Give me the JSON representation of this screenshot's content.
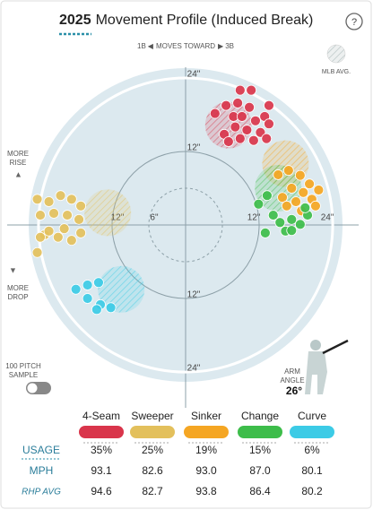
{
  "header": {
    "year": "2025",
    "title": "Movement Profile (Induced Break)",
    "help": "?"
  },
  "chart_data": {
    "type": "scatter",
    "left_label": "1B",
    "direction_label": "MOVES TOWARD",
    "right_label": "3B",
    "rise_label": "MORE RISE",
    "drop_label": "MORE DROP",
    "avg_legend": "MLB AVG.",
    "xlim": [
      -25.6,
      25.6
    ],
    "ylim": [
      -25.6,
      25.6
    ],
    "rticks": [
      {
        "value": 6,
        "label": "6\""
      },
      {
        "value": 12,
        "label": "12\""
      },
      {
        "value": 24,
        "label": "24\""
      }
    ],
    "series": [
      {
        "name": "4-Seam",
        "color": "#d9354b",
        "x": [
          4.8,
          6.6,
          8.9,
          10.7,
          7.8,
          9.2,
          11.4,
          12.9,
          13.6,
          12.2,
          10.0,
          8.1,
          6.3,
          7.0,
          8.9,
          11.1,
          13.2,
          13.6,
          8.5,
          10.4
        ],
        "y": [
          18.2,
          19.5,
          22.0,
          22.0,
          17.7,
          17.7,
          17.0,
          17.7,
          16.5,
          15.1,
          15.5,
          16.0,
          14.8,
          13.6,
          14.1,
          13.8,
          14.1,
          19.5,
          19.9,
          19.2
        ],
        "avg_x": 7.0,
        "avg_y": 16.3
      },
      {
        "name": "Sweeper",
        "color": "#e3c05c",
        "x": [
          -24.2,
          -22.3,
          -20.4,
          -18.6,
          -17.1,
          -23.7,
          -21.5,
          -19.3,
          -17.4,
          -23.0,
          -20.8,
          -18.6,
          -24.2,
          -22.3,
          -19.8,
          -17.1,
          -23.7
        ],
        "y": [
          4.2,
          3.8,
          4.8,
          4.2,
          3.1,
          1.6,
          1.9,
          1.6,
          0.9,
          -1.6,
          -2.0,
          -2.5,
          -4.5,
          -1.0,
          -0.6,
          -1.3,
          -2.0
        ],
        "avg_x": -12.7,
        "avg_y": 2.0
      },
      {
        "name": "Sinker",
        "color": "#f5a623",
        "x": [
          15.1,
          16.8,
          18.7,
          20.2,
          21.7,
          19.2,
          17.3,
          15.8,
          18.0,
          20.6,
          16.5,
          18.9,
          21.2
        ],
        "y": [
          8.2,
          8.9,
          8.1,
          6.7,
          5.7,
          5.3,
          6.0,
          4.5,
          3.8,
          4.2,
          3.1,
          2.3,
          3.1
        ],
        "avg_x": 16.3,
        "avg_y": 10.0
      },
      {
        "name": "Change",
        "color": "#3dbd4a",
        "x": [
          11.9,
          13.3,
          14.3,
          15.4,
          17.3,
          18.7,
          16.3,
          13.0,
          17.3,
          19.9,
          19.5
        ],
        "y": [
          3.4,
          4.8,
          1.6,
          0.4,
          0.9,
          0.1,
          -1.0,
          -1.3,
          -0.9,
          1.6,
          2.8
        ],
        "avg_x": 15.1,
        "avg_y": 6.0
      },
      {
        "name": "Curve",
        "color": "#3ccbe6",
        "x": [
          -17.9,
          -16.0,
          -14.2,
          -16.0,
          -13.9,
          -12.2,
          -14.5
        ],
        "y": [
          -10.5,
          -9.8,
          -9.4,
          -12.0,
          -13.0,
          -13.5,
          -13.8
        ],
        "avg_x": -10.5,
        "avg_y": -10.5
      }
    ]
  },
  "toggle": {
    "label": "100 PITCH SAMPLE"
  },
  "arm_angle": {
    "label": "ARM ANGLE",
    "value": "26°"
  },
  "table": {
    "row_labels": [
      "USAGE",
      "MPH",
      "RHP AVG"
    ],
    "rows": [
      [
        "35%",
        "25%",
        "19%",
        "15%",
        "6%"
      ],
      [
        "93.1",
        "82.6",
        "93.0",
        "87.0",
        "80.1"
      ],
      [
        "94.6",
        "82.7",
        "93.8",
        "86.4",
        "80.2"
      ]
    ]
  }
}
